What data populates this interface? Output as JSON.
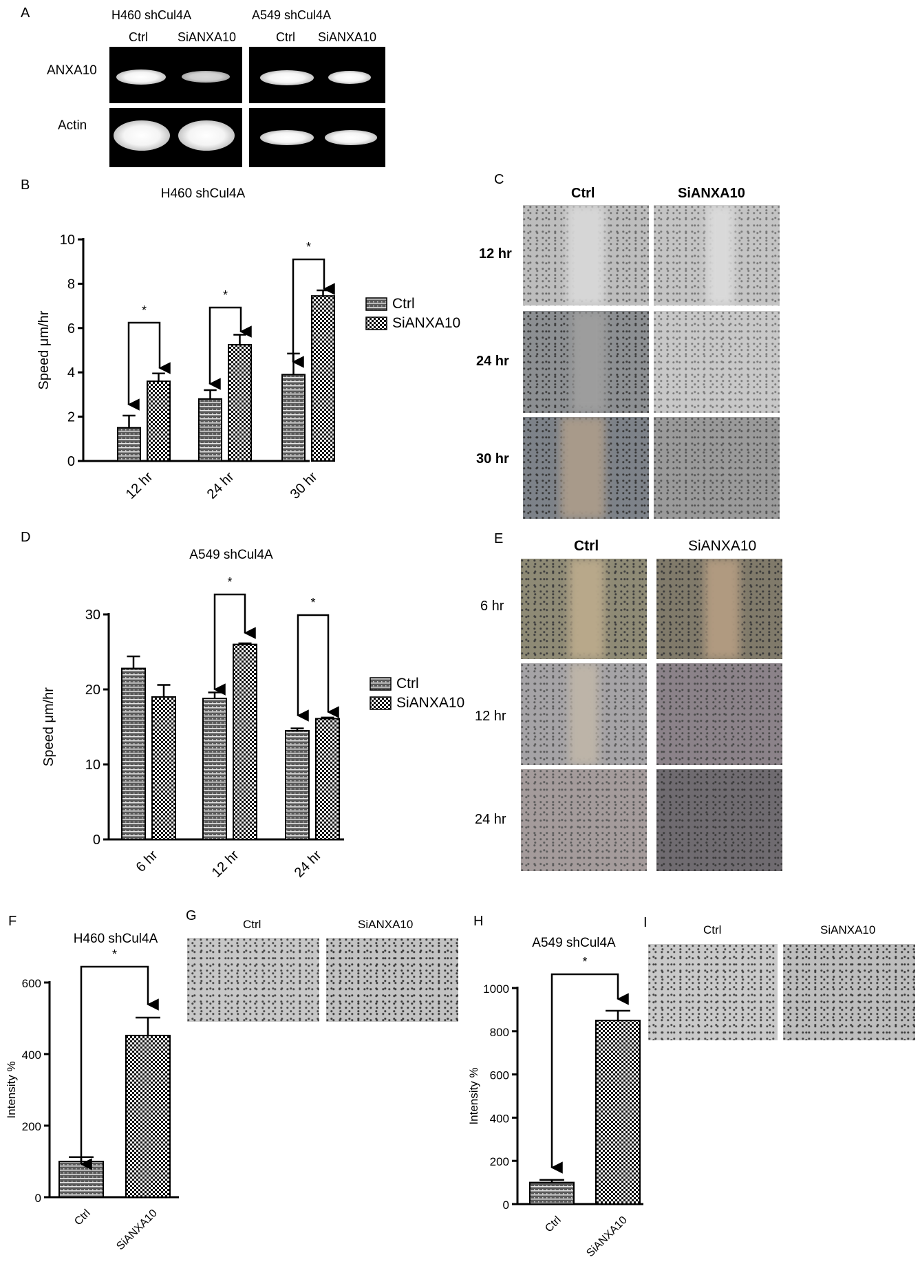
{
  "panel_letters": {
    "a": "A",
    "b": "B",
    "c": "C",
    "d": "D",
    "e": "E",
    "f": "F",
    "g": "G",
    "h": "H",
    "i": "I"
  },
  "panel_a": {
    "h460_title": "H460 shCul4A",
    "a549_title": "A549 shCul4A",
    "lane_ctrl": "Ctrl",
    "lane_si": "SiANXA10",
    "row1": "ANXA10",
    "row2": "Actin"
  },
  "panel_c": {
    "col1": "Ctrl",
    "col2": "SiANXA10",
    "rows": [
      "12 hr",
      "24 hr",
      "30 hr"
    ]
  },
  "panel_e": {
    "col1": "Ctrl",
    "col2": "SiANXA10",
    "rows": [
      "6 hr",
      "12 hr",
      "24 hr"
    ]
  },
  "panel_g": {
    "col1": "Ctrl",
    "col2": "SiANXA10"
  },
  "panel_i": {
    "col1": "Ctrl",
    "col2": "SiANXA10"
  },
  "colors": {
    "ctrl_fill": "#4a4a4a",
    "si_fill": "#1a1a1a",
    "axis": "#000000"
  },
  "chart_data": [
    {
      "id": "B",
      "type": "bar",
      "title": "H460 shCul4A",
      "ylabel": "Speed μm/hr",
      "xlabel": "",
      "categories": [
        "12 hr",
        "24 hr",
        "30 hr"
      ],
      "ylim": [
        0,
        10
      ],
      "yticks": [
        0,
        2,
        4,
        6,
        8,
        10
      ],
      "series": [
        {
          "name": "Ctrl",
          "values": [
            1.5,
            2.8,
            3.9
          ],
          "errors": [
            0.55,
            0.4,
            0.95
          ]
        },
        {
          "name": "SiANXA10",
          "values": [
            3.6,
            5.25,
            7.45
          ],
          "errors": [
            0.35,
            0.45,
            0.25
          ]
        }
      ],
      "significance": [
        "*",
        "*",
        "*"
      ],
      "legend": "right"
    },
    {
      "id": "D",
      "type": "bar",
      "title": "A549 shCul4A",
      "ylabel": "Speed μm/hr",
      "xlabel": "",
      "categories": [
        "6 hr",
        "12 hr",
        "24 hr"
      ],
      "ylim": [
        0,
        30
      ],
      "yticks": [
        0,
        10,
        20,
        30
      ],
      "series": [
        {
          "name": "Ctrl",
          "values": [
            22.8,
            18.8,
            14.5
          ],
          "errors": [
            1.6,
            0.8,
            0.3
          ]
        },
        {
          "name": "SiANXA10",
          "values": [
            19.0,
            26.0,
            16.1
          ],
          "errors": [
            1.6,
            0.15,
            0.15
          ]
        }
      ],
      "significance": [
        "",
        "*",
        "*"
      ],
      "legend": "right"
    },
    {
      "id": "F",
      "type": "bar",
      "title": "H460 shCul4A",
      "ylabel": "Intensity %",
      "xlabel": "",
      "categories": [
        "Ctrl",
        "SiANXA10"
      ],
      "ylim": [
        0,
        600
      ],
      "yticks": [
        0,
        200,
        400,
        600
      ],
      "values": [
        100,
        452
      ],
      "errors": [
        12,
        50
      ],
      "significance": [
        "*"
      ]
    },
    {
      "id": "H",
      "type": "bar",
      "title": "A549 shCul4A",
      "ylabel": "Intensity %",
      "xlabel": "",
      "categories": [
        "Ctrl",
        "SiANXA10"
      ],
      "ylim": [
        0,
        1000
      ],
      "yticks": [
        0,
        200,
        400,
        600,
        800,
        1000
      ],
      "values": [
        100,
        850
      ],
      "errors": [
        12,
        45
      ],
      "significance": [
        "*"
      ]
    }
  ]
}
